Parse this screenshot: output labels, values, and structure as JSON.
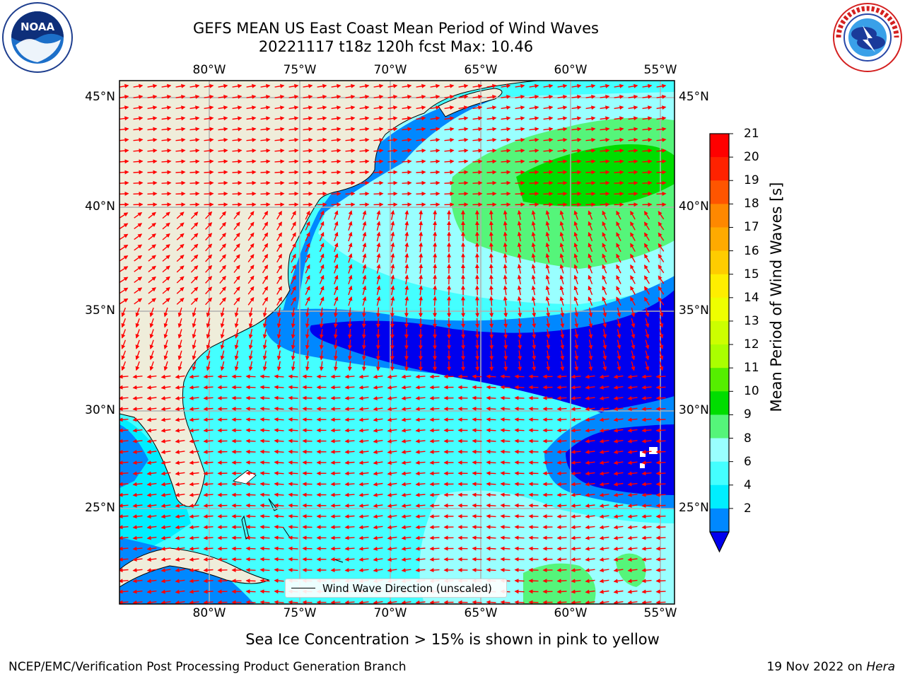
{
  "title": {
    "line1": "GEFS MEAN US East Coast Mean Period of Wind Waves",
    "line2": "20221117 t18z 120h fcst   Max: 10.46"
  },
  "logos": {
    "left": "noaa-logo",
    "left_text": "NOAA",
    "right": "national-weather-service-logo"
  },
  "map": {
    "lon_labels": [
      "80°W",
      "75°W",
      "70°W",
      "65°W",
      "60°W",
      "55°W"
    ],
    "lat_labels": [
      "45°N",
      "40°N",
      "35°N",
      "30°N",
      "25°N"
    ],
    "land_color": "#efedda",
    "grid_color": "#b0b0b0",
    "arrow_color": "#ff0000"
  },
  "colorbar": {
    "label": "Mean Period of Wind Waves [s]",
    "ticks": [
      "21",
      "20",
      "19",
      "18",
      "17",
      "16",
      "15",
      "14",
      "13",
      "12",
      "11",
      "10",
      "9",
      "8",
      "6",
      "4",
      "2"
    ],
    "colors": [
      "#ff0000",
      "#ff2200",
      "#ff5500",
      "#ff8800",
      "#ffaa00",
      "#ffcc00",
      "#ffee00",
      "#eeff00",
      "#ccff00",
      "#aaff00",
      "#55ee00",
      "#00dd00",
      "#55f57a",
      "#99ffff",
      "#44ffff",
      "#00eeff",
      "#0088ff"
    ],
    "under_color": "#0000ee"
  },
  "legend": {
    "label": "Wind Wave Direction (unscaled)"
  },
  "footer": {
    "ice_note": "Sea Ice Concentration > 15% is shown in pink to yellow",
    "credit": "NCEP/EMC/Verification Post Processing Product Generation Branch",
    "date": "19 Nov 2022 on ",
    "host": "Hera"
  }
}
